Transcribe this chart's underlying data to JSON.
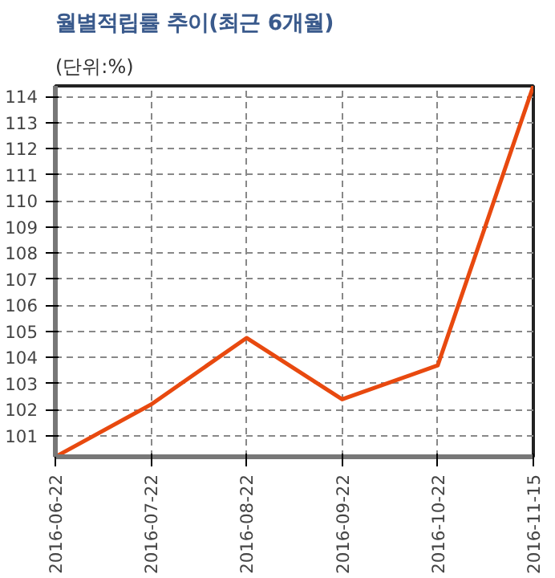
{
  "chart_data": {
    "type": "line",
    "title": "월별적립률 추이(최근 6개월)",
    "annotations": [
      "(단위:%)"
    ],
    "categories": [
      "2016-06-22",
      "2016-07-22",
      "2016-08-22",
      "2016-09-22",
      "2016-10-22",
      "2016-11-15"
    ],
    "series": [
      {
        "color": "#e8490f",
        "values": [
          100.2,
          102.2,
          104.75,
          102.4,
          103.7,
          114.4
        ]
      }
    ],
    "ylim": [
      100.2,
      114.4
    ],
    "yticks": [
      101,
      102,
      103,
      104,
      105,
      106,
      107,
      108,
      109,
      110,
      111,
      112,
      113,
      114
    ],
    "grid": true,
    "marker": "none",
    "line_style": "solid"
  }
}
